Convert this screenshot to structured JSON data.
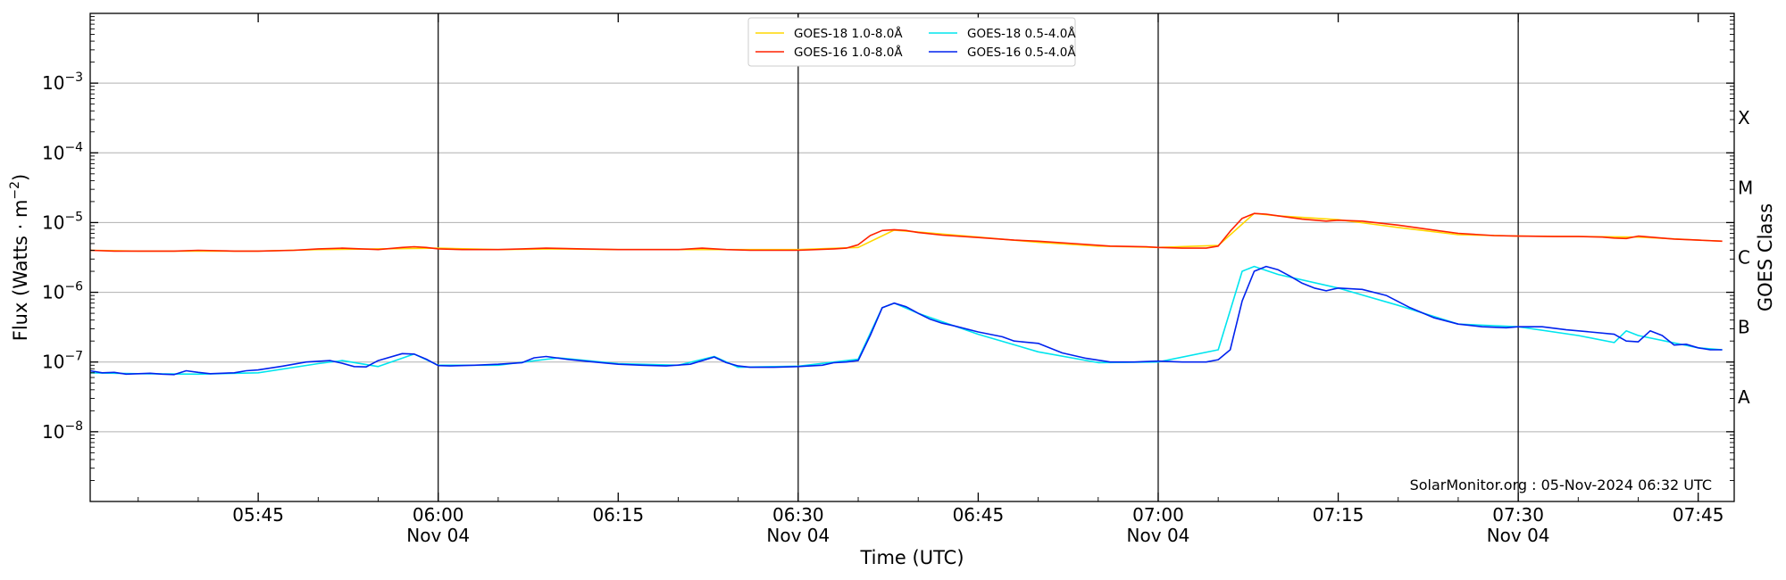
{
  "chart_data": {
    "type": "line",
    "xlabel": "Time (UTC)",
    "ylabel": "Flux (Watts · m",
    "ylabel_exp": "−2",
    "ylabel_close": ")",
    "y2label": "GOES Class",
    "yscale": "log",
    "ylim": [
      1e-09,
      0.01
    ],
    "xlim": [
      "05:31",
      "07:48"
    ],
    "grid": "horizontal",
    "legend_placement": "top-center",
    "credit": "SolarMonitor.org : 05-Nov-2024 06:32 UTC",
    "x_ticks": [
      {
        "time": "05:45",
        "label": "05:45",
        "day": ""
      },
      {
        "time": "06:00",
        "label": "06:00",
        "day": "Nov 04"
      },
      {
        "time": "06:15",
        "label": "06:15",
        "day": ""
      },
      {
        "time": "06:30",
        "label": "06:30",
        "day": "Nov 04"
      },
      {
        "time": "06:45",
        "label": "06:45",
        "day": ""
      },
      {
        "time": "07:00",
        "label": "07:00",
        "day": "Nov 04"
      },
      {
        "time": "07:15",
        "label": "07:15",
        "day": ""
      },
      {
        "time": "07:30",
        "label": "07:30",
        "day": "Nov 04"
      },
      {
        "time": "07:45",
        "label": "07:45",
        "day": ""
      }
    ],
    "day_lines": [
      "06:00",
      "06:30",
      "07:00",
      "07:30"
    ],
    "y_ticks": [
      {
        "exp": -8,
        "label": "10",
        "sup": "−8"
      },
      {
        "exp": -7,
        "label": "10",
        "sup": "−7"
      },
      {
        "exp": -6,
        "label": "10",
        "sup": "−6"
      },
      {
        "exp": -5,
        "label": "10",
        "sup": "−5"
      },
      {
        "exp": -4,
        "label": "10",
        "sup": "−4"
      },
      {
        "exp": -3,
        "label": "10",
        "sup": "−3"
      }
    ],
    "goes_classes": [
      {
        "label": "A",
        "exp": -7.5
      },
      {
        "label": "B",
        "exp": -6.5
      },
      {
        "label": "C",
        "exp": -5.5
      },
      {
        "label": "M",
        "exp": -4.5
      },
      {
        "label": "X",
        "exp": -3.5
      }
    ],
    "legend": [
      {
        "name": "GOES-18 1.0-8.0Å",
        "color": "#ffd700"
      },
      {
        "name": "GOES-18 0.5-4.0Å",
        "color": "#00e5ee"
      },
      {
        "name": "GOES-16 1.0-8.0Å",
        "color": "#ff2200"
      },
      {
        "name": "GOES-16 0.5-4.0Å",
        "color": "#0022ee"
      }
    ],
    "series": [
      {
        "name": "GOES-18 1.0-8.0Å",
        "color": "#ffd700",
        "x": [
          "05:31",
          "05:35",
          "05:40",
          "05:45",
          "05:50",
          "05:55",
          "06:00",
          "06:05",
          "06:10",
          "06:15",
          "06:20",
          "06:25",
          "06:30",
          "06:35",
          "06:38",
          "06:40",
          "06:45",
          "06:50",
          "06:55",
          "07:00",
          "07:05",
          "07:08",
          "07:10",
          "07:15",
          "07:20",
          "07:25",
          "07:30",
          "07:35",
          "07:40",
          "07:45",
          "07:47"
        ],
        "y": [
          4e-06,
          3.9e-06,
          3.9e-06,
          3.9e-06,
          4.1e-06,
          4.2e-06,
          4.3e-06,
          4.1e-06,
          4.2e-06,
          4.1e-06,
          4.1e-06,
          4.1e-06,
          4.1e-06,
          4.4e-06,
          7.8e-06,
          7.3e-06,
          6.2e-06,
          5.2e-06,
          4.6e-06,
          4.4e-06,
          4.7e-06,
          1.35e-05,
          1.25e-05,
          1.1e-05,
          8.5e-06,
          6.7e-06,
          6.4e-06,
          6.3e-06,
          6.2e-06,
          5.6e-06,
          5.4e-06
        ]
      },
      {
        "name": "GOES-18 0.5-4.0Å",
        "color": "#00e5ee",
        "x": [
          "05:31",
          "05:35",
          "05:40",
          "05:45",
          "05:50",
          "05:52",
          "05:55",
          "05:58",
          "06:00",
          "06:05",
          "06:10",
          "06:15",
          "06:20",
          "06:23",
          "06:25",
          "06:30",
          "06:35",
          "06:37",
          "06:38",
          "06:40",
          "06:45",
          "06:50",
          "06:55",
          "07:00",
          "07:05",
          "07:07",
          "07:08",
          "07:10",
          "07:15",
          "07:20",
          "07:25",
          "07:30",
          "07:35",
          "07:38",
          "07:39",
          "07:40",
          "07:45",
          "07:47"
        ],
        "y": [
          7e-08,
          6.8e-08,
          6.7e-08,
          7e-08,
          9.5e-08,
          1.05e-07,
          8.6e-08,
          1.3e-07,
          9e-08,
          9e-08,
          1.15e-07,
          9.5e-08,
          9e-08,
          1.2e-07,
          8.4e-08,
          8.7e-08,
          1.1e-07,
          6e-07,
          7e-07,
          5e-07,
          2.5e-07,
          1.4e-07,
          9.8e-08,
          1e-07,
          1.5e-07,
          2e-06,
          2.35e-06,
          1.8e-06,
          1.15e-06,
          6.5e-07,
          3.5e-07,
          3.2e-07,
          2.4e-07,
          1.9e-07,
          2.8e-07,
          2.4e-07,
          1.6e-07,
          1.5e-07
        ]
      },
      {
        "name": "GOES-16 1.0-8.0Å",
        "color": "#ff2200",
        "x": [
          "05:31",
          "05:33",
          "05:35",
          "05:38",
          "05:40",
          "05:43",
          "05:45",
          "05:48",
          "05:50",
          "05:52",
          "05:55",
          "05:57",
          "05:58",
          "05:59",
          "06:00",
          "06:02",
          "06:05",
          "06:07",
          "06:09",
          "06:12",
          "06:15",
          "06:18",
          "06:20",
          "06:22",
          "06:24",
          "06:26",
          "06:28",
          "06:30",
          "06:33",
          "06:34",
          "06:35",
          "06:36",
          "06:37",
          "06:38",
          "06:39",
          "06:40",
          "06:42",
          "06:45",
          "06:48",
          "06:50",
          "06:53",
          "06:56",
          "06:59",
          "07:00",
          "07:02",
          "07:04",
          "07:05",
          "07:06",
          "07:07",
          "07:08",
          "07:09",
          "07:10",
          "07:12",
          "07:14",
          "07:15",
          "07:17",
          "07:20",
          "07:23",
          "07:25",
          "07:28",
          "07:30",
          "07:33",
          "07:35",
          "07:37",
          "07:38",
          "07:39",
          "07:40",
          "07:43",
          "07:45",
          "07:47"
        ],
        "y": [
          4e-06,
          3.9e-06,
          3.9e-06,
          3.9e-06,
          4e-06,
          3.9e-06,
          3.9e-06,
          4e-06,
          4.2e-06,
          4.3e-06,
          4.1e-06,
          4.4e-06,
          4.5e-06,
          4.4e-06,
          4.2e-06,
          4.1e-06,
          4.1e-06,
          4.2e-06,
          4.3e-06,
          4.2e-06,
          4.1e-06,
          4.1e-06,
          4.1e-06,
          4.3e-06,
          4.1e-06,
          4e-06,
          4e-06,
          4e-06,
          4.2e-06,
          4.3e-06,
          4.8e-06,
          6.5e-06,
          7.7e-06,
          7.9e-06,
          7.7e-06,
          7.2e-06,
          6.6e-06,
          6.1e-06,
          5.6e-06,
          5.4e-06,
          5e-06,
          4.6e-06,
          4.5e-06,
          4.4e-06,
          4.3e-06,
          4.3e-06,
          4.6e-06,
          7.5e-06,
          1.15e-05,
          1.35e-05,
          1.32e-05,
          1.25e-05,
          1.12e-05,
          1.05e-05,
          1.08e-05,
          1.05e-05,
          9.2e-06,
          7.8e-06,
          7e-06,
          6.5e-06,
          6.4e-06,
          6.3e-06,
          6.3e-06,
          6.2e-06,
          6e-06,
          5.9e-06,
          6.4e-06,
          5.8e-06,
          5.6e-06,
          5.4e-06
        ]
      },
      {
        "name": "GOES-16 0.5-4.0Å",
        "color": "#0022ee",
        "x": [
          "05:31",
          "05:32",
          "05:33",
          "05:34",
          "05:35",
          "05:36",
          "05:37",
          "05:38",
          "05:39",
          "05:40",
          "05:41",
          "05:42",
          "05:43",
          "05:44",
          "05:45",
          "05:47",
          "05:49",
          "05:51",
          "05:52",
          "05:53",
          "05:54",
          "05:55",
          "05:57",
          "05:58",
          "05:59",
          "06:00",
          "06:01",
          "06:03",
          "06:05",
          "06:07",
          "06:08",
          "06:09",
          "06:11",
          "06:13",
          "06:15",
          "06:17",
          "06:19",
          "06:21",
          "06:23",
          "06:24",
          "06:25",
          "06:26",
          "06:28",
          "06:30",
          "06:32",
          "06:33",
          "06:34",
          "06:35",
          "06:36",
          "06:37",
          "06:38",
          "06:39",
          "06:40",
          "06:41",
          "06:42",
          "06:43",
          "06:45",
          "06:47",
          "06:48",
          "06:50",
          "06:52",
          "06:54",
          "06:56",
          "06:58",
          "07:00",
          "07:02",
          "07:04",
          "07:05",
          "07:06",
          "07:07",
          "07:08",
          "07:09",
          "07:10",
          "07:11",
          "07:12",
          "07:13",
          "07:14",
          "07:15",
          "07:17",
          "07:19",
          "07:21",
          "07:23",
          "07:25",
          "07:27",
          "07:29",
          "07:30",
          "07:32",
          "07:34",
          "07:36",
          "07:38",
          "07:39",
          "07:40",
          "07:41",
          "07:42",
          "07:43",
          "07:44",
          "07:45",
          "07:46",
          "07:47"
        ],
        "y": [
          7.5e-08,
          7e-08,
          7.1e-08,
          6.7e-08,
          6.8e-08,
          6.9e-08,
          6.7e-08,
          6.6e-08,
          7.5e-08,
          7.1e-08,
          6.8e-08,
          6.9e-08,
          7e-08,
          7.5e-08,
          7.7e-08,
          8.7e-08,
          1e-07,
          1.05e-07,
          9.6e-08,
          8.6e-08,
          8.5e-08,
          1.05e-07,
          1.32e-07,
          1.3e-07,
          1.1e-07,
          8.9e-08,
          8.8e-08,
          9e-08,
          9.3e-08,
          9.8e-08,
          1.15e-07,
          1.2e-07,
          1.08e-07,
          1e-07,
          9.3e-08,
          9e-08,
          8.8e-08,
          9.3e-08,
          1.18e-07,
          9.8e-08,
          8.8e-08,
          8.4e-08,
          8.4e-08,
          8.6e-08,
          9e-08,
          9.8e-08,
          1e-07,
          1.05e-07,
          2.4e-07,
          6e-07,
          7e-07,
          6.2e-07,
          5e-07,
          4.1e-07,
          3.6e-07,
          3.3e-07,
          2.7e-07,
          2.3e-07,
          2e-07,
          1.85e-07,
          1.35e-07,
          1.13e-07,
          1e-07,
          1e-07,
          1.03e-07,
          1e-07,
          1e-07,
          1.08e-07,
          1.5e-07,
          7.5e-07,
          2e-06,
          2.35e-06,
          2.1e-06,
          1.7e-06,
          1.35e-06,
          1.15e-06,
          1.05e-06,
          1.15e-06,
          1.1e-06,
          9e-07,
          6e-07,
          4.3e-07,
          3.5e-07,
          3.2e-07,
          3.1e-07,
          3.2e-07,
          3.2e-07,
          2.9e-07,
          2.7e-07,
          2.5e-07,
          2e-07,
          1.95e-07,
          2.8e-07,
          2.4e-07,
          1.75e-07,
          1.8e-07,
          1.6e-07,
          1.5e-07,
          1.5e-07
        ]
      }
    ]
  }
}
